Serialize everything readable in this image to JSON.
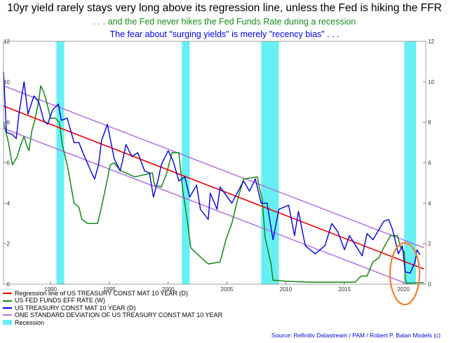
{
  "title": "10yr yield rarely stays very long above its regression line, unless the Fed is hiking the FFR",
  "subtitle1": ". . . and the Fed never hikes the Fed Funds Rate during a recession",
  "subtitle2": "The fear about \"surging yields\" is merely \"recency bias\" . . .",
  "source": "Source: Refinitiv Datastream / PAM / Robert P. Balan Models (c)",
  "colors": {
    "regression": "#ee0000",
    "fed_funds": "#118811",
    "treasury": "#0000dd",
    "std_dev": "#b070e8",
    "recession": "#66f0f4",
    "circle": "#f08030"
  },
  "chart_data": {
    "type": "line",
    "xlim": [
      "1986-01",
      "2021-12"
    ],
    "ylim": [
      0,
      12
    ],
    "x_ticks": [
      "1990",
      "1995",
      "2000",
      "2005",
      "2010",
      "2015",
      "2020"
    ],
    "y_ticks": [
      "0",
      "2",
      "4",
      "6",
      "8",
      "10",
      "12"
    ],
    "legend_position": "bottom-left",
    "grid": false,
    "recessions": [
      [
        "1990-07",
        "1991-03"
      ],
      [
        "2001-03",
        "2001-11"
      ],
      [
        "2007-12",
        "2009-06"
      ],
      [
        "2020-02",
        "2021-02"
      ]
    ],
    "series": [
      {
        "name": "Regression line of US TREASURY CONST MAT 10 YEAR (D)",
        "x": [
          "1986-01",
          "2021-10"
        ],
        "values": [
          8.8,
          0.75
        ]
      },
      {
        "name": "US FED FUNDS EFF RATE (W)",
        "x": [
          "1986-01",
          "1986-06",
          "1986-10",
          "1987-03",
          "1987-06",
          "1987-10",
          "1988-01",
          "1988-03",
          "1988-06",
          "1988-09",
          "1989-01",
          "1989-03",
          "1989-06",
          "1989-09",
          "1990-01",
          "1990-06",
          "1990-10",
          "1991-01",
          "1991-06",
          "1992-01",
          "1992-06",
          "1992-09",
          "1993-03",
          "1994-01",
          "1994-04",
          "1994-08",
          "1995-02",
          "1995-06",
          "1995-09",
          "1996-01",
          "1997-03",
          "1998-09",
          "1998-11",
          "1999-06",
          "1999-11",
          "2000-05",
          "2000-12",
          "2001-01",
          "2001-04",
          "2001-06",
          "2001-09",
          "2001-12",
          "2002-11",
          "2003-06",
          "2004-06",
          "2004-12",
          "2005-06",
          "2005-12",
          "2006-06",
          "2007-08",
          "2007-10",
          "2008-01",
          "2008-04",
          "2008-10",
          "2008-12",
          "2010-01",
          "2012-01",
          "2015-12",
          "2016-06",
          "2016-12",
          "2017-06",
          "2017-12",
          "2018-06",
          "2018-12",
          "2019-07",
          "2019-10",
          "2020-02",
          "2020-03",
          "2020-04",
          "2021-10"
        ],
        "values": [
          8.0,
          7.0,
          5.9,
          6.3,
          6.8,
          7.3,
          6.8,
          6.6,
          7.6,
          8.1,
          9.1,
          9.8,
          9.5,
          9.0,
          8.2,
          8.2,
          8.0,
          6.9,
          5.9,
          4.0,
          3.8,
          3.2,
          3.0,
          3.0,
          3.6,
          4.5,
          5.9,
          6.0,
          5.8,
          5.6,
          5.3,
          5.5,
          4.9,
          4.8,
          5.4,
          6.5,
          6.5,
          6.0,
          4.6,
          4.0,
          3.0,
          1.8,
          1.3,
          1.0,
          1.1,
          2.2,
          3.0,
          4.2,
          5.2,
          5.3,
          4.8,
          4.2,
          2.3,
          1.0,
          0.2,
          0.15,
          0.1,
          0.1,
          0.4,
          0.4,
          1.1,
          1.3,
          1.9,
          2.4,
          2.4,
          1.85,
          1.6,
          0.3,
          0.05,
          0.08
        ]
      },
      {
        "name": "US TREASURY CONST MAT 10 YEAR (D)",
        "x": [
          "1986-01",
          "1986-04",
          "1986-10",
          "1987-02",
          "1987-05",
          "1987-10",
          "1988-02",
          "1988-08",
          "1989-01",
          "1989-06",
          "1989-10",
          "1990-03",
          "1990-09",
          "1990-12",
          "1991-06",
          "1992-01",
          "1992-06",
          "1992-10",
          "1993-06",
          "1993-10",
          "1994-02",
          "1994-05",
          "1994-11",
          "1995-06",
          "1995-12",
          "1996-03",
          "1996-06",
          "1996-12",
          "1997-06",
          "1998-01",
          "1998-06",
          "1998-10",
          "1999-03",
          "1999-06",
          "2000-01",
          "2000-06",
          "2000-12",
          "2001-06",
          "2001-11",
          "2002-06",
          "2002-10",
          "2003-06",
          "2003-08",
          "2004-03",
          "2004-06",
          "2005-06",
          "2006-06",
          "2006-12",
          "2007-06",
          "2007-12",
          "2008-06",
          "2008-12",
          "2009-06",
          "2010-04",
          "2010-10",
          "2011-02",
          "2011-09",
          "2012-07",
          "2013-05",
          "2013-12",
          "2014-06",
          "2015-01",
          "2015-06",
          "2016-07",
          "2016-12",
          "2017-06",
          "2018-05",
          "2018-10",
          "2019-02",
          "2019-08",
          "2019-12",
          "2020-03",
          "2020-08",
          "2021-01",
          "2021-03",
          "2021-06"
        ],
        "values": [
          10.5,
          7.5,
          7.4,
          7.2,
          8.5,
          10.0,
          8.4,
          9.3,
          9.0,
          8.1,
          7.9,
          8.6,
          8.9,
          8.1,
          8.2,
          7.0,
          7.0,
          6.5,
          5.6,
          5.2,
          5.9,
          7.1,
          7.9,
          6.2,
          5.6,
          6.2,
          6.9,
          6.3,
          6.5,
          5.6,
          5.5,
          4.3,
          5.2,
          5.9,
          6.6,
          6.1,
          5.1,
          5.3,
          4.3,
          4.9,
          3.7,
          3.2,
          4.5,
          3.7,
          4.8,
          4.0,
          5.1,
          4.6,
          5.2,
          4.0,
          4.0,
          2.2,
          3.7,
          3.9,
          2.4,
          3.6,
          1.9,
          1.5,
          1.9,
          3.0,
          2.6,
          1.7,
          2.4,
          1.4,
          2.5,
          2.2,
          3.1,
          3.2,
          2.7,
          1.5,
          1.9,
          0.6,
          0.55,
          1.1,
          1.7,
          1.45
        ]
      },
      {
        "name": "ONE STANDARD DEVIATION OF US TREASURY CONST MAT 10 YEAR",
        "bands": [
          {
            "x": [
              "1986-01",
              "2021-10"
            ],
            "values": [
              9.8,
              1.8
            ]
          },
          {
            "x": [
              "1986-01",
              "2021-10"
            ],
            "values": [
              7.7,
              -0.3
            ]
          }
        ]
      },
      {
        "name": "Recession"
      }
    ]
  }
}
